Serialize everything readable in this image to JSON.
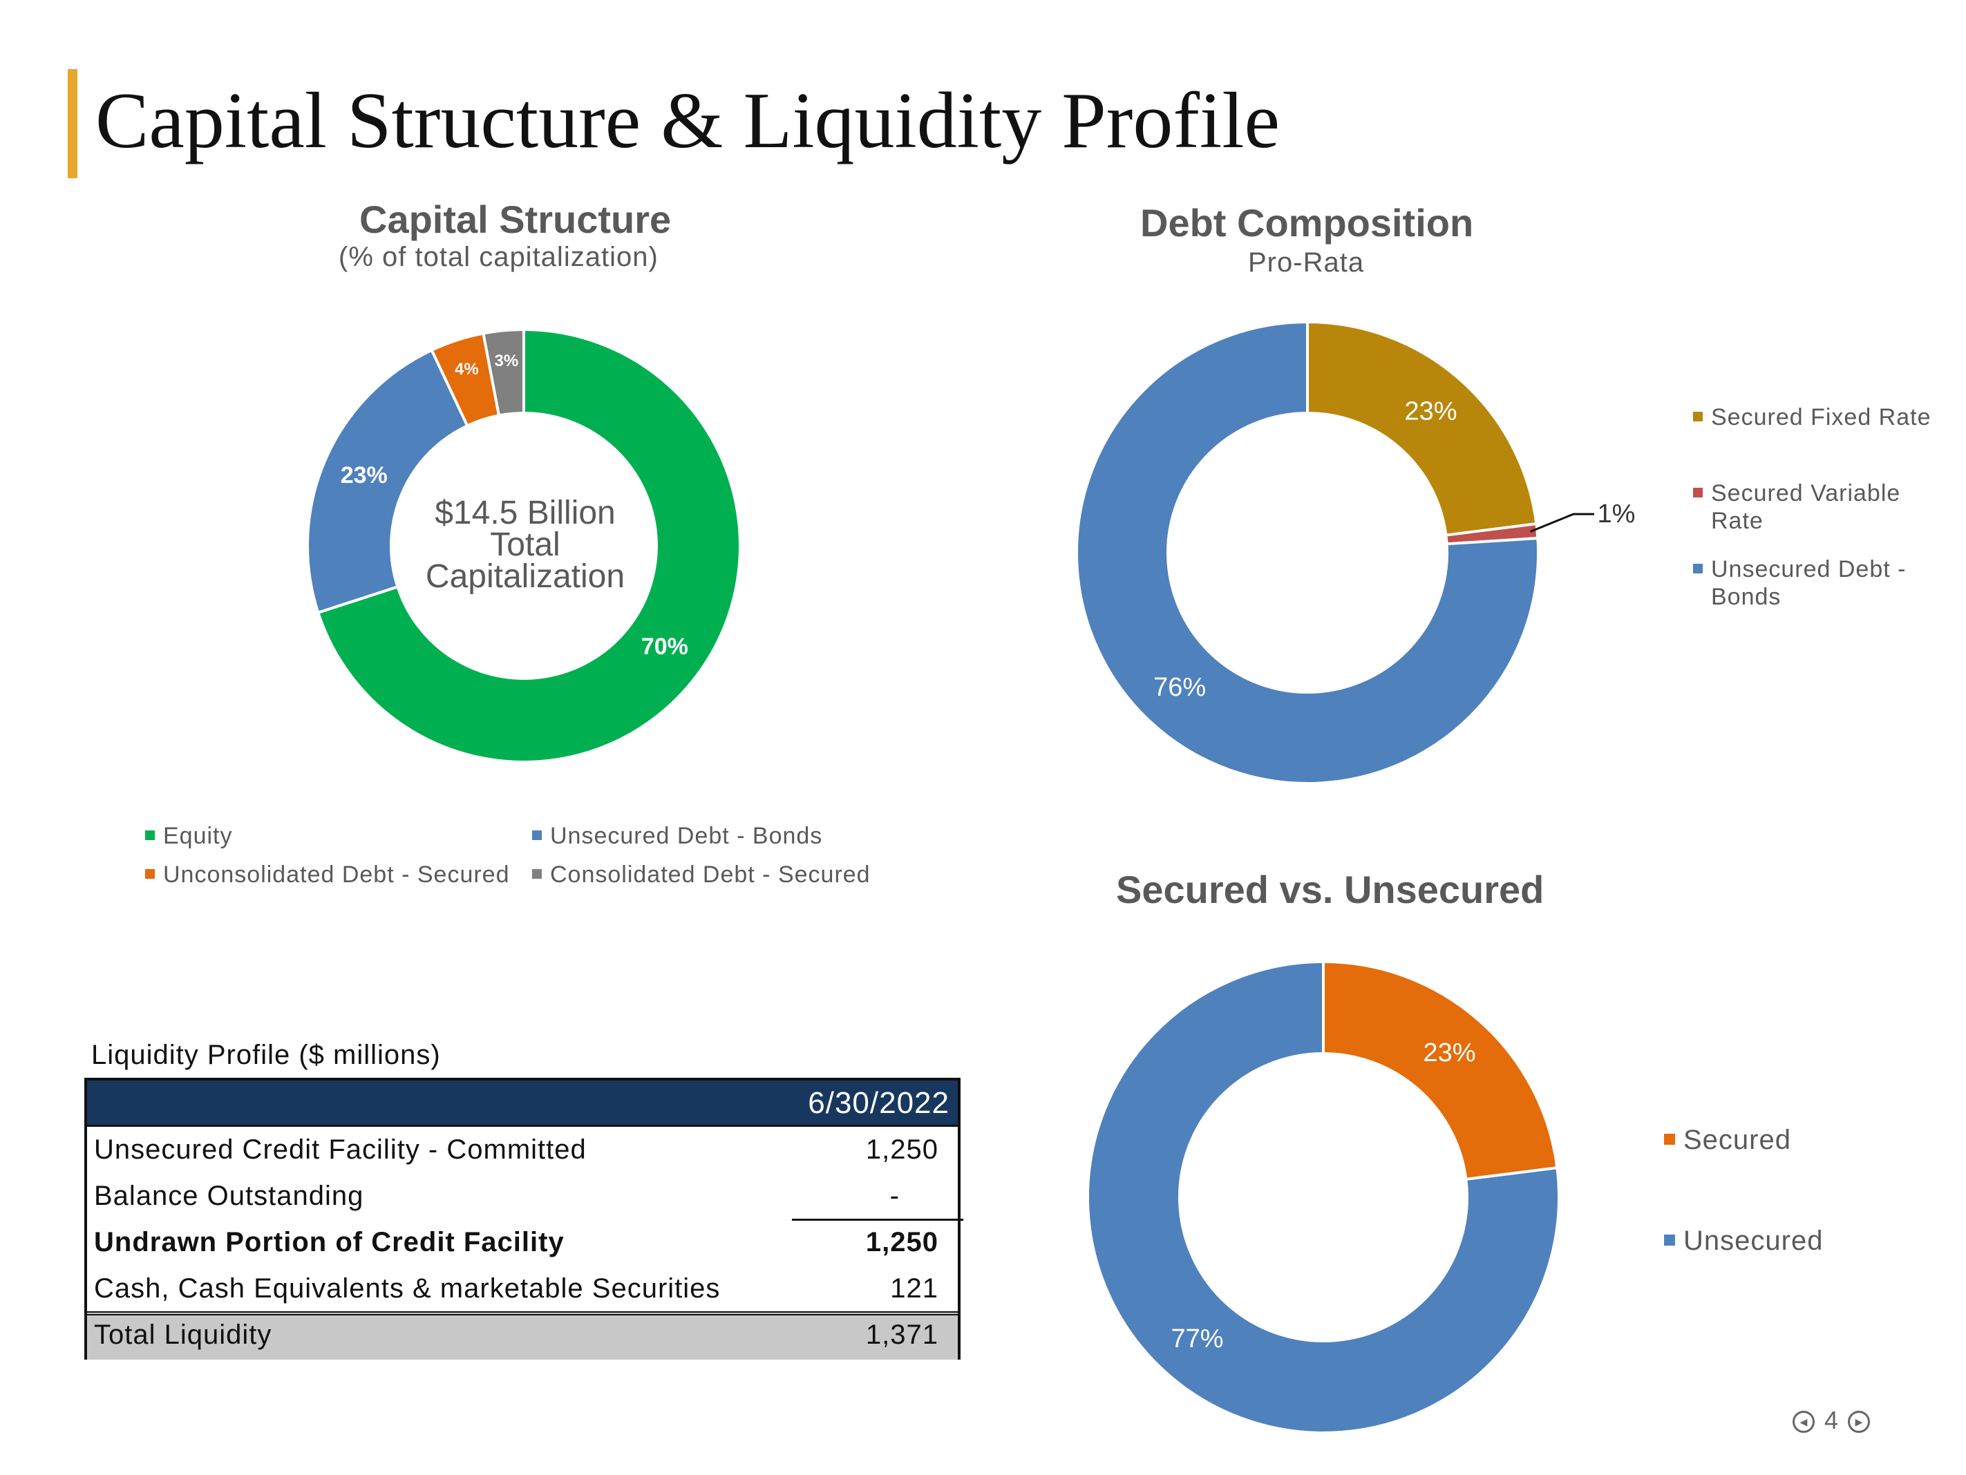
{
  "page": {
    "title": "Capital Structure & Liquidity Profile",
    "page_number": "4",
    "accent_color": "#E6A82C"
  },
  "icons": {
    "prev": "prev-page-icon",
    "next": "next-page-icon"
  },
  "chart_data": [
    {
      "id": "capital",
      "type": "pie",
      "title": "Capital Structure",
      "subtitle": "(% of total capitalization)",
      "center_text": [
        "$14.5 Billion",
        "Total",
        "Capitalization"
      ],
      "legend_position": "bottom",
      "slices": [
        {
          "label": "Equity",
          "value": 70,
          "display": "70%",
          "color": "#00B050"
        },
        {
          "label": "Unsecured Debt - Bonds",
          "value": 23,
          "display": "23%",
          "color": "#4F81BD"
        },
        {
          "label": "Unconsolidated Debt - Secured",
          "value": 4,
          "display": "4%",
          "color": "#E46C0A"
        },
        {
          "label": "Consolidated Debt - Secured",
          "value": 3,
          "display": "3%",
          "color": "#808080"
        }
      ]
    },
    {
      "id": "debt",
      "type": "pie",
      "title": "Debt Composition",
      "subtitle": "Pro-Rata",
      "legend_position": "right",
      "slices": [
        {
          "label": "Secured Fixed Rate",
          "value": 23,
          "display": "23%",
          "color": "#B8860B"
        },
        {
          "label": "Secured Variable Rate",
          "value": 1,
          "display": "1%",
          "color": "#C0504D"
        },
        {
          "label": "Unsecured Debt - Bonds",
          "value": 76,
          "display": "76%",
          "color": "#4F81BD"
        }
      ]
    },
    {
      "id": "secured",
      "type": "pie",
      "title": "Secured vs. Unsecured",
      "legend_position": "right",
      "slices": [
        {
          "label": "Secured",
          "value": 23,
          "display": "23%",
          "color": "#E46C0A"
        },
        {
          "label": "Unsecured",
          "value": 77,
          "display": "77%",
          "color": "#4F81BD"
        }
      ]
    }
  ],
  "liquidity": {
    "caption": "Liquidity Profile ($ millions)",
    "date_header": "6/30/2022",
    "header_color": "#17375E",
    "rows": [
      {
        "label": "Unsecured Credit Facility - Committed",
        "value": "1,250"
      },
      {
        "label": "Balance Outstanding",
        "value": "-"
      },
      {
        "label": "Undrawn Portion of Credit Facility",
        "value": "1,250"
      },
      {
        "label": "Cash, Cash Equivalents & marketable Securities",
        "value": "121"
      }
    ],
    "total": {
      "label": "Total Liquidity",
      "value": "1,371"
    }
  }
}
